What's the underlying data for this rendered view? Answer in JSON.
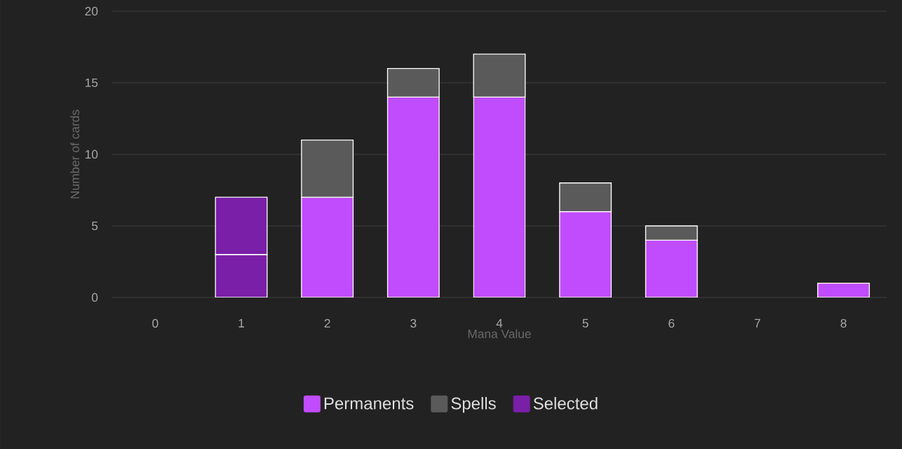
{
  "chart_data": {
    "type": "bar",
    "stacked": true,
    "xlabel": "Mana Value",
    "ylabel": "Number of cards",
    "categories": [
      "0",
      "1",
      "2",
      "3",
      "4",
      "5",
      "6",
      "7",
      "8"
    ],
    "series": [
      {
        "name": "Permanents",
        "color": "#c04cfd",
        "values": [
          null,
          null,
          7,
          14,
          14,
          6,
          4,
          null,
          1
        ]
      },
      {
        "name": "Spells",
        "color": "#5a5a5a",
        "values": [
          null,
          null,
          4,
          2,
          3,
          2,
          1,
          null,
          null
        ]
      },
      {
        "name": "Selected",
        "color": "#7a1fa8",
        "values": [
          null,
          3,
          null,
          null,
          null,
          null,
          null,
          null,
          null
        ]
      },
      {
        "color": "#7a1fa8",
        "values": [
          null,
          4,
          null,
          null,
          null,
          null,
          null,
          null,
          null
        ]
      }
    ],
    "ylim": [
      0,
      20
    ],
    "yticks": [
      0,
      5,
      10,
      15,
      20
    ],
    "grid": "y",
    "legend": "bottom"
  }
}
